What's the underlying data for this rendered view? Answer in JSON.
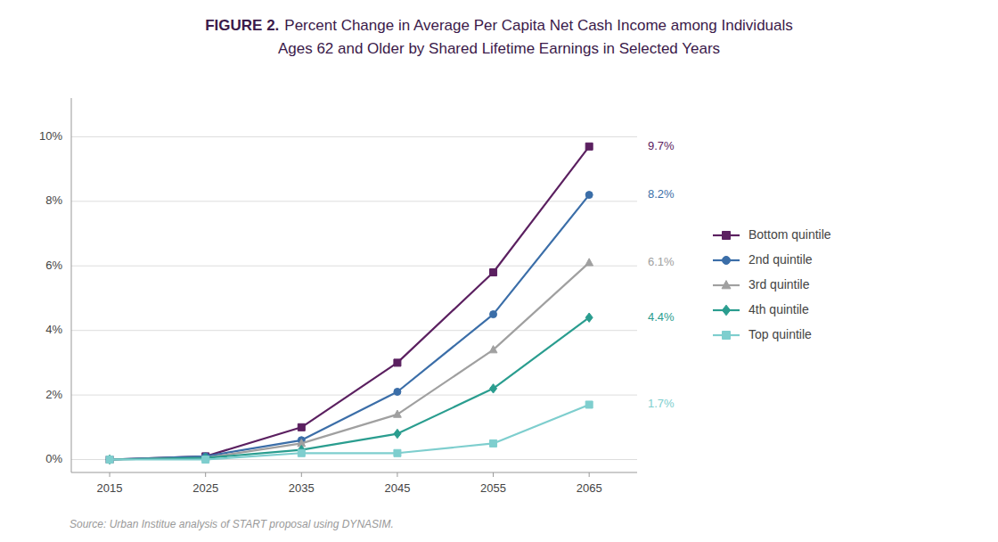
{
  "chart_data": {
    "type": "line",
    "title": [
      "FIGURE 2.",
      "Percent Change in Average Per Capita Net Cash Income among Individuals",
      "Ages 62 and Older by Shared Lifetime Earnings in Selected Years"
    ],
    "x": [
      2015,
      2025,
      2035,
      2045,
      2055,
      2065
    ],
    "series": [
      {
        "name": "Bottom quintile",
        "color": "#5b2060",
        "marker": "square",
        "values": [
          0.0,
          0.1,
          1.0,
          3.0,
          5.8,
          9.7
        ],
        "value_labels": [
          null,
          null,
          null,
          null,
          null,
          "9.7%"
        ]
      },
      {
        "name": "2nd quintile",
        "color": "#3b6ea8",
        "marker": "circle",
        "values": [
          0.0,
          0.1,
          0.6,
          2.1,
          4.5,
          8.2
        ],
        "value_labels": [
          null,
          null,
          null,
          null,
          null,
          "8.2%"
        ]
      },
      {
        "name": "3rd quintile",
        "color": "#a0a0a0",
        "marker": "triangle",
        "values": [
          0.0,
          0.05,
          0.5,
          1.4,
          3.4,
          6.1
        ],
        "value_labels": [
          null,
          null,
          null,
          null,
          null,
          "6.1%"
        ]
      },
      {
        "name": "4th quintile",
        "color": "#2a9d8f",
        "marker": "diamond",
        "values": [
          0.0,
          0.05,
          0.3,
          0.8,
          2.2,
          4.4
        ],
        "value_labels": [
          null,
          null,
          null,
          null,
          null,
          "4.4%"
        ]
      },
      {
        "name": "Top quintile",
        "color": "#7ecece",
        "marker": "square",
        "values": [
          0.0,
          0.0,
          0.2,
          0.2,
          0.5,
          1.7
        ],
        "value_labels": [
          null,
          null,
          null,
          null,
          null,
          "1.7%"
        ]
      }
    ],
    "xlim": [
      2011,
      2070
    ],
    "xticks": [
      2015,
      2025,
      2035,
      2045,
      2055,
      2065
    ],
    "ylim": [
      -0.4,
      11.2
    ],
    "yticks": [
      {
        "value": 0,
        "label": "0%"
      },
      {
        "value": 2,
        "label": "2%"
      },
      {
        "value": 4,
        "label": "4%"
      },
      {
        "value": 6,
        "label": "6%"
      },
      {
        "value": 8,
        "label": "8%"
      },
      {
        "value": 10,
        "label": "10%"
      }
    ],
    "grid": true,
    "legend": "right",
    "annotations": [
      "Source: Urban Institue analysis of START proposal using DYNASIM."
    ]
  }
}
